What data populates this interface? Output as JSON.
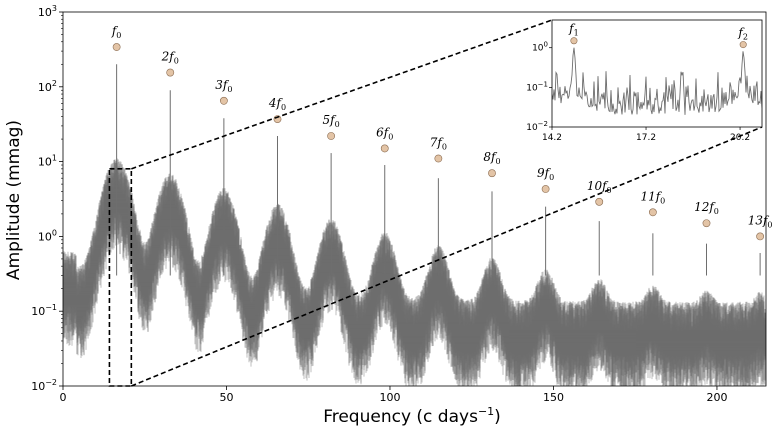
{
  "chart_data": {
    "type": "line",
    "title": "",
    "xlabel": "Frequency (c days",
    "xlabel_sup": "−1",
    "xlabel_close": ")",
    "ylabel": "Amplitude (mmag)",
    "xlim": [
      0,
      215
    ],
    "ylim": [
      0.01,
      1000
    ],
    "yscale": "log",
    "x_ticks": [
      {
        "value": 0,
        "label": "0"
      },
      {
        "value": 50,
        "label": "50"
      },
      {
        "value": 100,
        "label": "100"
      },
      {
        "value": 150,
        "label": "150"
      },
      {
        "value": 200,
        "label": "200"
      }
    ],
    "y_ticks": [
      {
        "value": 0.01,
        "base": "10",
        "exp": "−2"
      },
      {
        "value": 0.1,
        "base": "10",
        "exp": "−1"
      },
      {
        "value": 1,
        "base": "10",
        "exp": "0"
      },
      {
        "value": 10,
        "base": "10",
        "exp": "1"
      },
      {
        "value": 100,
        "base": "10",
        "exp": "2"
      },
      {
        "value": 1000,
        "base": "10",
        "exp": "3"
      }
    ],
    "series_color": "#6e6e6e",
    "marker_color": "#e3c4a6",
    "harmonics": [
      {
        "label": "f",
        "sub": "0",
        "freq": 16.4,
        "peak": 200,
        "marker": 340
      },
      {
        "label": "2f",
        "sub": "0",
        "freq": 32.8,
        "peak": 90,
        "marker": 155
      },
      {
        "label": "3f",
        "sub": "0",
        "freq": 49.2,
        "peak": 38,
        "marker": 65
      },
      {
        "label": "4f",
        "sub": "0",
        "freq": 65.6,
        "peak": 22,
        "marker": 37
      },
      {
        "label": "5f",
        "sub": "0",
        "freq": 82.0,
        "peak": 13,
        "marker": 22
      },
      {
        "label": "6f",
        "sub": "0",
        "freq": 98.4,
        "peak": 9,
        "marker": 15
      },
      {
        "label": "7f",
        "sub": "0",
        "freq": 114.8,
        "peak": 6,
        "marker": 11
      },
      {
        "label": "8f",
        "sub": "0",
        "freq": 131.2,
        "peak": 4,
        "marker": 7
      },
      {
        "label": "9f",
        "sub": "0",
        "freq": 147.6,
        "peak": 2.5,
        "marker": 4.3
      },
      {
        "label": "10f",
        "sub": "0",
        "freq": 164.0,
        "peak": 1.6,
        "marker": 2.9
      },
      {
        "label": "11f",
        "sub": "0",
        "freq": 180.4,
        "peak": 1.1,
        "marker": 2.1
      },
      {
        "label": "12f",
        "sub": "0",
        "freq": 196.8,
        "peak": 0.8,
        "marker": 1.5
      },
      {
        "label": "13f",
        "sub": "0",
        "freq": 213.2,
        "peak": 0.6,
        "marker": 1.0
      }
    ],
    "zoom_region": {
      "x": [
        14.2,
        20.9
      ],
      "y": [
        0.01,
        8
      ]
    },
    "inset": {
      "xlim": [
        14.2,
        20.9
      ],
      "ylim": [
        0.01,
        5
      ],
      "x_ticks": [
        {
          "value": 14.2,
          "label": "14.2"
        },
        {
          "value": 17.2,
          "label": "17.2"
        },
        {
          "value": 20.2,
          "label": "20.2"
        }
      ],
      "y_ticks": [
        {
          "value": 0.01,
          "base": "10",
          "exp": "−2"
        },
        {
          "value": 0.1,
          "base": "10",
          "exp": "−1"
        },
        {
          "value": 1,
          "base": "10",
          "exp": "0"
        }
      ],
      "peaks": [
        {
          "label": "f",
          "sub": "1",
          "freq": 14.9,
          "peak": 0.9,
          "marker": 1.5
        },
        {
          "label": "f",
          "sub": "2",
          "freq": 20.3,
          "peak": 0.7,
          "marker": 1.2
        }
      ]
    }
  }
}
